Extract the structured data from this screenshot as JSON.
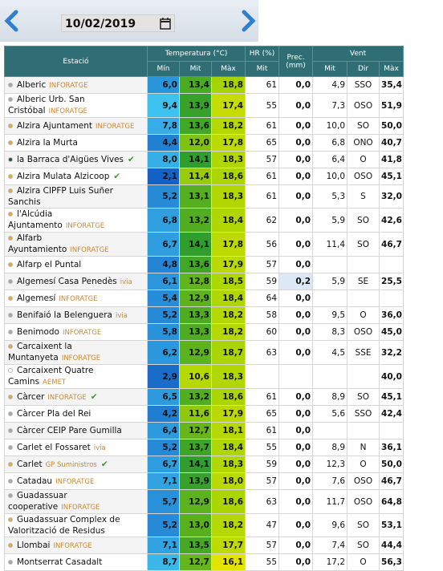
{
  "date_picker": {
    "date": "10/02/2019"
  },
  "table": {
    "headers": {
      "station": "Estació",
      "temperature": "Temperatura (°C)",
      "humidity": "HR (%)",
      "precipitation": "Prec.",
      "precipitation_unit": "(mm)",
      "wind": "Vent",
      "sub": [
        "Mín",
        "Mit",
        "Màx",
        "Mit",
        "Mit",
        "Dir",
        "Màx"
      ]
    },
    "rows": [
      {
        "name": "Alberic",
        "source": "INFORATGE",
        "dot": "#a6a6a6",
        "cells": [
          "6,0",
          "13,4",
          "18,8",
          "61",
          "0,0",
          "4,9",
          "SSO",
          "35,4"
        ]
      },
      {
        "name": "Alberic Urb. San Cristóbal",
        "source": "INFORATGE",
        "dot": "#a6a6a6",
        "cells": [
          "9,4",
          "13,9",
          "17,4",
          "55",
          "0,0",
          "7,3",
          "OSO",
          "51,9"
        ]
      },
      {
        "name": "Alzira Ajuntament",
        "source": "INFORATGE",
        "dot": "#e5a63a",
        "cells": [
          "7,8",
          "13,6",
          "18,2",
          "61",
          "0,0",
          "10,0",
          "SO",
          "50,0"
        ]
      },
      {
        "name": "Alzira la Murta",
        "dot": "#e5a63a",
        "cells": [
          "4,4",
          "12,0",
          "17,8",
          "65",
          "0,0",
          "6,8",
          "ONO",
          "40,7"
        ]
      },
      {
        "name": "la Barraca d'Aigües Vives",
        "dot": "#1f5a3a",
        "verified": true,
        "cells": [
          "8,0",
          "14,1",
          "18,3",
          "57",
          "0,0",
          "6,4",
          "O",
          "41,8"
        ]
      },
      {
        "name": "Alzira Mulata Alzicoop",
        "dot": "#e5a63a",
        "verified": true,
        "cells": [
          "2,1",
          "11,4",
          "18,6",
          "61",
          "0,0",
          "10,0",
          "OSO",
          "45,1"
        ]
      },
      {
        "name": "Alzira CIPFP Luis Suñer Sanchis",
        "dot": "#e5a63a",
        "cells": [
          "5,2",
          "13,1",
          "18,3",
          "61",
          "0,0",
          "5,3",
          "S",
          "32,0"
        ]
      },
      {
        "name": "l'Alcúdia Ajuntamento",
        "source": "INFORATGE",
        "dot": "#e5a63a",
        "cells": [
          "6,8",
          "13,2",
          "18,4",
          "62",
          "0,0",
          "5,9",
          "SO",
          "42,6"
        ]
      },
      {
        "name": "Alfarb Ayuntamiento",
        "source": "INFORATGE",
        "dot": "#e5a63a",
        "cells": [
          "6,7",
          "14,1",
          "17,8",
          "56",
          "0,0",
          "11,4",
          "SO",
          "46,7"
        ]
      },
      {
        "name": "Alfarp el Puntal",
        "dot": "#e5a63a",
        "cells": [
          "4,8",
          "13,6",
          "17,9",
          "57",
          "0,0",
          null,
          null,
          null
        ]
      },
      {
        "name": "Algemesí Casa Penedès",
        "source": "ivia",
        "dot": "#a6a6a6",
        "cells": [
          "6,1",
          "12,8",
          "18,5",
          "59",
          "0,2",
          "5,9",
          "SE",
          "25,5"
        ]
      },
      {
        "name": "Algemesí",
        "source": "INFORATGE",
        "dot": "#e5a63a",
        "cells": [
          "5,4",
          "12,9",
          "18,4",
          "64",
          "0,0",
          null,
          null,
          null
        ]
      },
      {
        "name": "Benifaió la Belenguera",
        "source": "ivia",
        "dot": "#a6a6a6",
        "cells": [
          "5,2",
          "13,3",
          "18,2",
          "58",
          "0,0",
          "9,5",
          "O",
          "36,0"
        ]
      },
      {
        "name": "Benimodo",
        "source": "INFORATGE",
        "dot": "#a6a6a6",
        "cells": [
          "5,8",
          "13,3",
          "18,2",
          "60",
          "0,0",
          "8,3",
          "OSO",
          "45,0"
        ]
      },
      {
        "name": "Carcaixent la Muntanyeta",
        "source": "INFORATGE",
        "dot": "#e5a63a",
        "cells": [
          "6,2",
          "12,9",
          "18,7",
          "63",
          "0,0",
          "4,5",
          "SSE",
          "32,2"
        ]
      },
      {
        "name": "Carcaixent Quatre Camins",
        "source": "AEMET",
        "dot": "#ffffff",
        "cells": [
          "2,9",
          "10,6",
          "18,3",
          null,
          null,
          null,
          null,
          "40,0"
        ]
      },
      {
        "name": "Càrcer",
        "source": "INFORATGE",
        "dot": "#e5a63a",
        "verified": true,
        "cells": [
          "6,5",
          "13,2",
          "18,6",
          "61",
          "0,0",
          "8,9",
          "SO",
          "45,1"
        ]
      },
      {
        "name": "Càrcer Pla del Rei",
        "dot": "#a6a6a6",
        "cells": [
          "4,2",
          "11,6",
          "17,9",
          "65",
          "0,0",
          "5,6",
          "SSO",
          "42,4"
        ]
      },
      {
        "name": "Càrcer CEIP Pare Gumilla",
        "dot": "#a6a6a6",
        "cells": [
          "6,4",
          "12,7",
          "18,1",
          "61",
          "0,0",
          null,
          null,
          null
        ]
      },
      {
        "name": "Carlet el Fossaret",
        "source": "ivia",
        "dot": "#a6a6a6",
        "cells": [
          "5,2",
          "13,7",
          "18,4",
          "55",
          "0,0",
          "8,9",
          "N",
          "36,1"
        ]
      },
      {
        "name": "Carlet",
        "source": "GP Suministros",
        "dot": "#e5a63a",
        "verified": true,
        "cells": [
          "6,7",
          "14,1",
          "18,3",
          "59",
          "0,0",
          "12,3",
          "O",
          "50,0"
        ]
      },
      {
        "name": "Catadau",
        "source": "INFORATGE",
        "dot": "#a6a6a6",
        "cells": [
          "7,1",
          "13,9",
          "18,0",
          "57",
          "0,0",
          "7,6",
          "OSO",
          "46,7"
        ]
      },
      {
        "name": "Guadassuar cooperative",
        "source": "INFORATGE",
        "dot": "#a6a6a6",
        "cells": [
          "5,7",
          "12,9",
          "18,6",
          "63",
          "0,0",
          "11,7",
          "OSO",
          "64,8"
        ]
      },
      {
        "name": "Guadassuar Complex de Valorització de Residus",
        "dot": "#e5a63a",
        "cells": [
          "5,2",
          "13,0",
          "18,2",
          "47",
          "0,0",
          "9,6",
          "SO",
          "53,1"
        ]
      },
      {
        "name": "Llombai",
        "source": "INFORATGE",
        "dot": "#e5a63a",
        "cells": [
          "7,1",
          "13,5",
          "17,7",
          "57",
          "0,0",
          "7,4",
          "SO",
          "44,4"
        ]
      },
      {
        "name": "Montserrat Casadalt",
        "dot": "#a6a6a6",
        "cells": [
          "8,7",
          "12,7",
          "16,1",
          "55",
          "0,0",
          "17,2",
          "O",
          "56,3"
        ]
      }
    ]
  }
}
